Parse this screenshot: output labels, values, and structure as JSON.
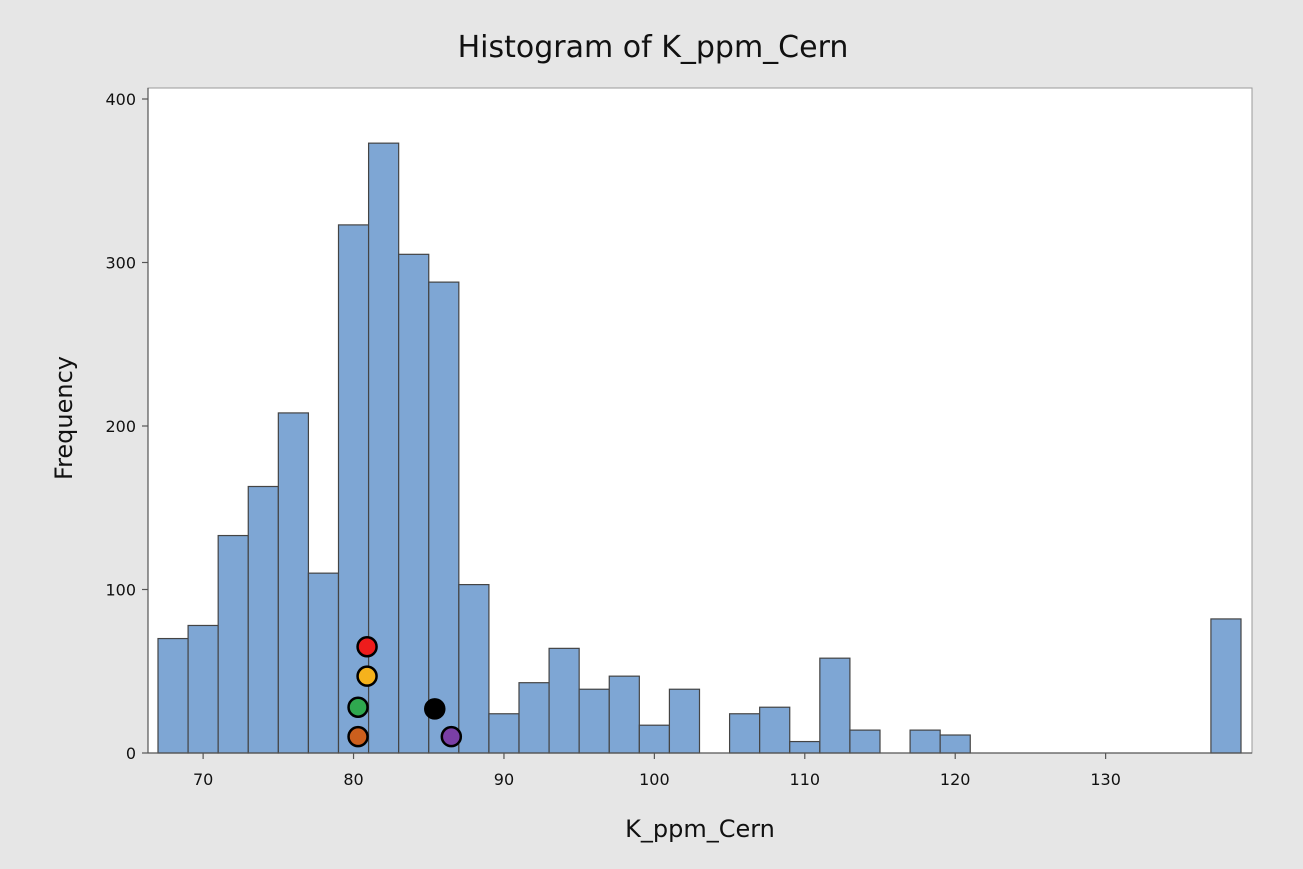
{
  "chart_data": {
    "type": "bar",
    "title": "Histogram of K_ppm_Cern",
    "xlabel": "K_ppm_Cern",
    "ylabel": "Frequency",
    "xlim": [
      67,
      139
    ],
    "ylim": [
      0,
      405
    ],
    "bin_width": 2,
    "x_ticks": [
      70,
      80,
      90,
      100,
      110,
      120,
      130
    ],
    "y_ticks": [
      0,
      100,
      200,
      300,
      400
    ],
    "bar_color": "#7ea6d4",
    "bar_edge_color": "#444444",
    "grid": false,
    "bins": [
      {
        "start": 67,
        "end": 69,
        "count": 70
      },
      {
        "start": 69,
        "end": 71,
        "count": 78
      },
      {
        "start": 71,
        "end": 73,
        "count": 133
      },
      {
        "start": 73,
        "end": 75,
        "count": 163
      },
      {
        "start": 75,
        "end": 77,
        "count": 208
      },
      {
        "start": 77,
        "end": 79,
        "count": 110
      },
      {
        "start": 79,
        "end": 81,
        "count": 323
      },
      {
        "start": 81,
        "end": 83,
        "count": 373
      },
      {
        "start": 83,
        "end": 85,
        "count": 305
      },
      {
        "start": 85,
        "end": 87,
        "count": 288
      },
      {
        "start": 87,
        "end": 89,
        "count": 103
      },
      {
        "start": 89,
        "end": 91,
        "count": 24
      },
      {
        "start": 91,
        "end": 93,
        "count": 43
      },
      {
        "start": 93,
        "end": 95,
        "count": 64
      },
      {
        "start": 95,
        "end": 97,
        "count": 39
      },
      {
        "start": 97,
        "end": 99,
        "count": 47
      },
      {
        "start": 99,
        "end": 101,
        "count": 17
      },
      {
        "start": 101,
        "end": 103,
        "count": 39
      },
      {
        "start": 103,
        "end": 105,
        "count": 0
      },
      {
        "start": 105,
        "end": 107,
        "count": 24
      },
      {
        "start": 107,
        "end": 109,
        "count": 28
      },
      {
        "start": 109,
        "end": 111,
        "count": 7
      },
      {
        "start": 111,
        "end": 113,
        "count": 58
      },
      {
        "start": 113,
        "end": 115,
        "count": 14
      },
      {
        "start": 115,
        "end": 117,
        "count": 0
      },
      {
        "start": 117,
        "end": 119,
        "count": 14
      },
      {
        "start": 119,
        "end": 121,
        "count": 11
      },
      {
        "start": 121,
        "end": 123,
        "count": 0
      },
      {
        "start": 123,
        "end": 125,
        "count": 0
      },
      {
        "start": 125,
        "end": 127,
        "count": 0
      },
      {
        "start": 127,
        "end": 129,
        "count": 0
      },
      {
        "start": 129,
        "end": 131,
        "count": 0
      },
      {
        "start": 131,
        "end": 133,
        "count": 0
      },
      {
        "start": 133,
        "end": 135,
        "count": 0
      },
      {
        "start": 135,
        "end": 137,
        "count": 0
      },
      {
        "start": 137,
        "end": 139,
        "count": 82
      }
    ],
    "markers": [
      {
        "x": 80.9,
        "y": 65,
        "color": "#ee1c1c"
      },
      {
        "x": 80.9,
        "y": 47,
        "color": "#f5b21c"
      },
      {
        "x": 80.3,
        "y": 28,
        "color": "#2fa84f"
      },
      {
        "x": 80.3,
        "y": 10,
        "color": "#cc5f1d"
      },
      {
        "x": 85.4,
        "y": 27,
        "color": "#000000"
      },
      {
        "x": 86.5,
        "y": 10,
        "color": "#7a3fa6"
      }
    ]
  }
}
